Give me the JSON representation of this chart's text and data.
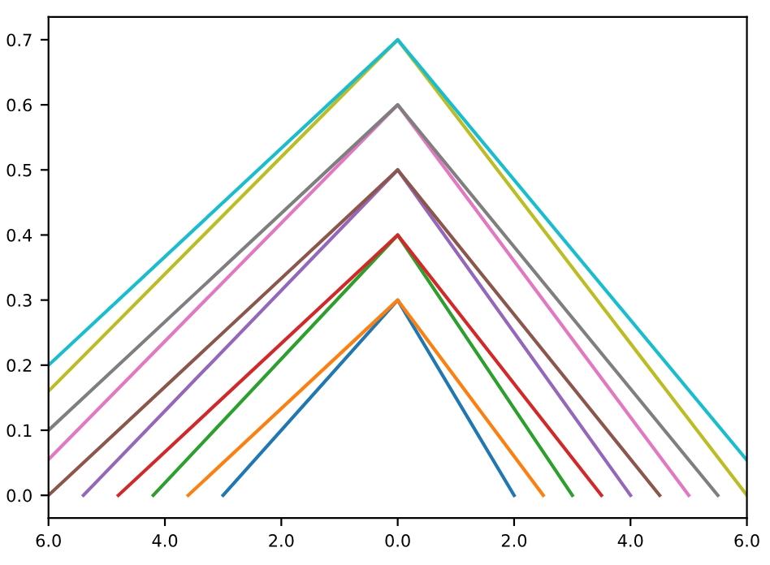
{
  "chart_data": {
    "type": "line",
    "xlim": [
      -6,
      6
    ],
    "ylim": [
      -0.035,
      0.735
    ],
    "xticks": [
      {
        "value": -6,
        "label": "6.0"
      },
      {
        "value": -4,
        "label": "4.0"
      },
      {
        "value": -2,
        "label": "2.0"
      },
      {
        "value": 0,
        "label": "0.0"
      },
      {
        "value": 2,
        "label": "2.0"
      },
      {
        "value": 4,
        "label": "4.0"
      },
      {
        "value": 6,
        "label": "6.0"
      }
    ],
    "yticks": [
      {
        "value": 0,
        "label": "0.0"
      },
      0.1,
      0.2,
      0.3,
      0.4,
      0.5,
      0.6,
      0.7
    ],
    "grid": false,
    "marker": "none",
    "line_style": "solid",
    "series": [
      {
        "color": "#1f77b4",
        "x": [
          -3,
          0,
          2
        ],
        "values": [
          0,
          0.3,
          0
        ]
      },
      {
        "color": "#ff7f0e",
        "x": [
          -3.6,
          0,
          2.5
        ],
        "values": [
          0,
          0.3,
          0
        ]
      },
      {
        "color": "#2ca02c",
        "x": [
          -4.2,
          0,
          3
        ],
        "values": [
          0,
          0.4,
          0
        ]
      },
      {
        "color": "#d62728",
        "x": [
          -4.8,
          0,
          3.5
        ],
        "values": [
          0,
          0.4,
          0
        ]
      },
      {
        "color": "#9467bd",
        "x": [
          -5.4,
          0,
          4
        ],
        "values": [
          0,
          0.5,
          0
        ]
      },
      {
        "color": "#8c564b",
        "x": [
          -6,
          0,
          4.5
        ],
        "values": [
          0,
          0.5,
          0
        ]
      },
      {
        "color": "#e377c2",
        "x": [
          -6,
          0,
          5
        ],
        "values": [
          0.055,
          0.6,
          0
        ]
      },
      {
        "color": "#7f7f7f",
        "x": [
          -6,
          0,
          5.5
        ],
        "values": [
          0.1,
          0.6,
          0
        ]
      },
      {
        "color": "#bcbd22",
        "x": [
          -6,
          0,
          6
        ],
        "values": [
          0.16,
          0.7,
          0
        ]
      },
      {
        "color": "#17becf",
        "x": [
          -6,
          0,
          6
        ],
        "values": [
          0.2,
          0.7,
          0.054
        ]
      }
    ]
  }
}
